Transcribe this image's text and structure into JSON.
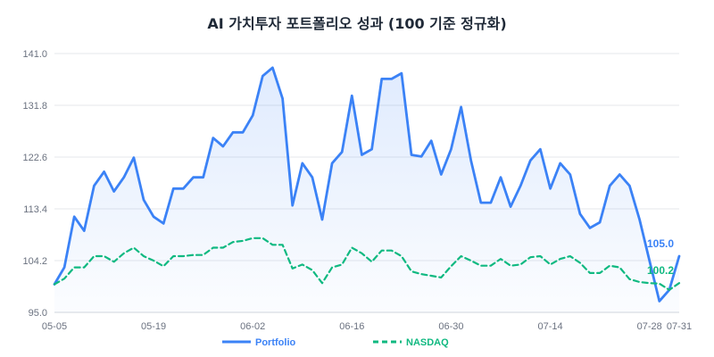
{
  "chart_data": {
    "type": "line",
    "title": "AI 가치투자 포트폴리오 성과 (100 기준 정규화)",
    "xlabel": "",
    "ylabel": "",
    "ylim": [
      95.0,
      141.0
    ],
    "yticks": [
      "141.0",
      "131.8",
      "122.6",
      "113.4",
      "104.2",
      "95.0"
    ],
    "yticks_values": [
      141.0,
      131.8,
      122.6,
      113.4,
      104.2,
      95.0
    ],
    "xticks": [
      "05-05",
      "05-19",
      "06-02",
      "06-16",
      "06-30",
      "07-14",
      "07-28",
      "07-31"
    ],
    "xticks_index": [
      0,
      10,
      20,
      30,
      40,
      50,
      60,
      63
    ],
    "grid": true,
    "legend_position": "bottom",
    "x": [
      "05-05",
      "05-06",
      "05-07",
      "05-08",
      "05-09",
      "05-12",
      "05-13",
      "05-14",
      "05-15",
      "05-16",
      "05-19",
      "05-20",
      "05-21",
      "05-22",
      "05-23",
      "05-26",
      "05-27",
      "05-28",
      "05-29",
      "05-30",
      "06-02",
      "06-03",
      "06-04",
      "06-05",
      "06-06",
      "06-09",
      "06-10",
      "06-11",
      "06-12",
      "06-13",
      "06-16",
      "06-17",
      "06-18",
      "06-19",
      "06-20",
      "06-23",
      "06-24",
      "06-25",
      "06-26",
      "06-27",
      "06-30",
      "07-01",
      "07-02",
      "07-03",
      "07-04",
      "07-07",
      "07-08",
      "07-09",
      "07-10",
      "07-11",
      "07-14",
      "07-15",
      "07-16",
      "07-17",
      "07-18",
      "07-21",
      "07-22",
      "07-23",
      "07-24",
      "07-25",
      "07-28",
      "07-29",
      "07-30",
      "07-31"
    ],
    "series": [
      {
        "name": "Portfolio",
        "color": "#3b82f6",
        "style": "solid",
        "end_label": "105.0",
        "values": [
          100.0,
          103.0,
          112.0,
          109.5,
          117.5,
          120.0,
          116.5,
          119.0,
          122.5,
          115.0,
          112.0,
          110.8,
          117.0,
          117.0,
          119.0,
          119.0,
          126.0,
          124.5,
          127.0,
          127.0,
          130.0,
          137.0,
          138.5,
          133.0,
          114.0,
          121.5,
          119.0,
          111.5,
          121.5,
          123.5,
          133.5,
          123.0,
          124.0,
          136.5,
          136.5,
          137.5,
          123.0,
          122.7,
          125.5,
          119.5,
          124.0,
          131.5,
          122.0,
          114.5,
          114.5,
          119.0,
          113.8,
          117.5,
          122.0,
          124.0,
          117.0,
          121.5,
          119.5,
          112.5,
          110.0,
          111.0,
          117.5,
          119.5,
          117.5,
          111.5,
          104.2,
          97.0,
          99.0,
          105.0
        ]
      },
      {
        "name": "NASDAQ",
        "color": "#10b981",
        "style": "dashed",
        "end_label": "100.2",
        "values": [
          100.0,
          101.0,
          103.0,
          103.0,
          105.0,
          105.0,
          104.0,
          105.5,
          106.5,
          105.0,
          104.2,
          103.2,
          105.0,
          105.0,
          105.2,
          105.2,
          106.5,
          106.5,
          107.5,
          107.7,
          108.2,
          108.2,
          107.0,
          107.0,
          102.8,
          103.5,
          102.5,
          100.2,
          103.0,
          103.5,
          106.5,
          105.5,
          104.0,
          106.0,
          106.0,
          105.0,
          102.3,
          101.8,
          101.5,
          101.2,
          103.2,
          105.0,
          104.2,
          103.3,
          103.3,
          104.5,
          103.3,
          103.5,
          104.8,
          105.0,
          103.5,
          104.5,
          105.0,
          103.8,
          102.0,
          102.0,
          103.3,
          103.0,
          100.9,
          100.4,
          100.2,
          100.1,
          99.0,
          100.2
        ]
      }
    ]
  }
}
